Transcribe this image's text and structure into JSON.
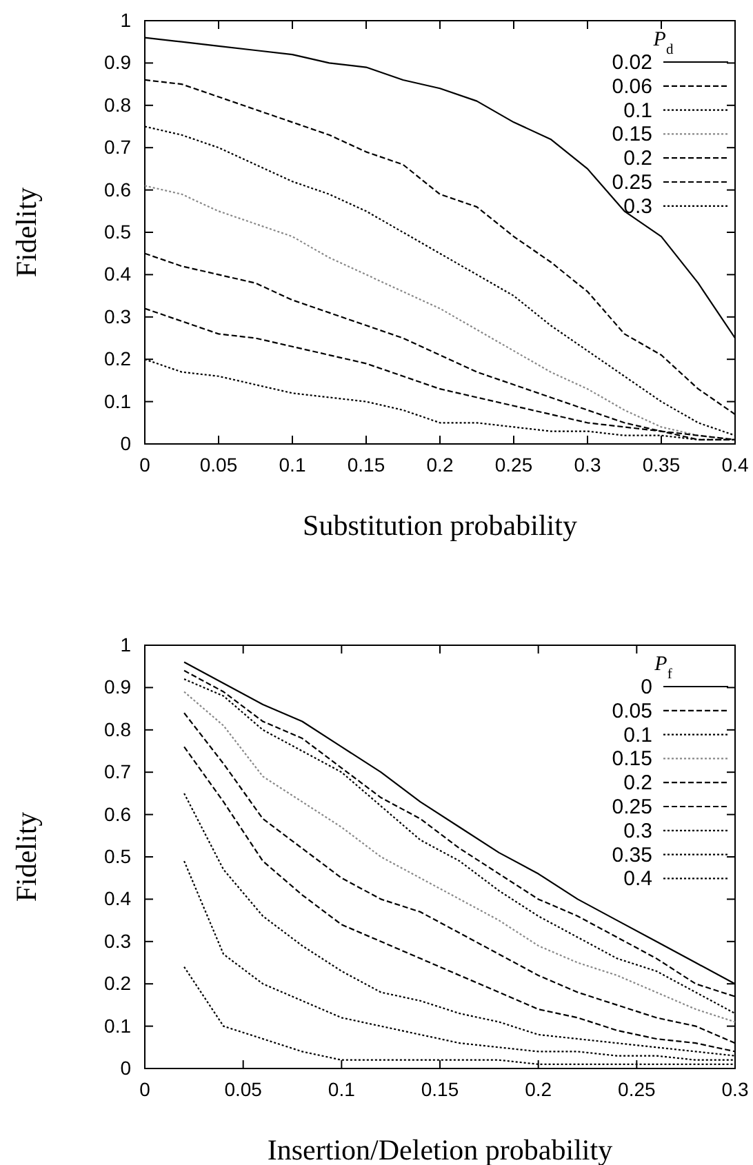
{
  "chart_data": [
    {
      "type": "line",
      "xlabel": "Substitution probability",
      "ylabel": "Fidelity",
      "legend_title": "P$_{d}$",
      "legend": "top right",
      "grid": false,
      "xlim": [
        0,
        0.4
      ],
      "ylim": [
        0,
        1
      ],
      "xticks": [
        0,
        0.05,
        0.1,
        0.15,
        0.2,
        0.25,
        0.3,
        0.35,
        0.4
      ],
      "yticks": [
        0,
        0.1,
        0.2,
        0.3,
        0.4,
        0.5,
        0.6,
        0.7,
        0.8,
        0.9,
        1
      ],
      "x": [
        0,
        0.025,
        0.05,
        0.075,
        0.1,
        0.125,
        0.15,
        0.175,
        0.2,
        0.225,
        0.25,
        0.275,
        0.3,
        0.325,
        0.35,
        0.375,
        0.4
      ],
      "series": [
        {
          "name": "0.02",
          "color": "#000000",
          "line_style": "solid",
          "values": [
            0.96,
            0.95,
            0.94,
            0.93,
            0.92,
            0.9,
            0.89,
            0.86,
            0.84,
            0.81,
            0.76,
            0.72,
            0.65,
            0.55,
            0.49,
            0.38,
            0.25
          ]
        },
        {
          "name": "0.06",
          "color": "#000000",
          "line_style": "dashed",
          "values": [
            0.86,
            0.85,
            0.82,
            0.79,
            0.76,
            0.73,
            0.69,
            0.66,
            0.59,
            0.56,
            0.49,
            0.43,
            0.36,
            0.26,
            0.21,
            0.13,
            0.07
          ]
        },
        {
          "name": "0.1",
          "color": "#000000",
          "line_style": "dotted",
          "values": [
            0.75,
            0.73,
            0.7,
            0.66,
            0.62,
            0.59,
            0.55,
            0.5,
            0.45,
            0.4,
            0.35,
            0.28,
            0.22,
            0.16,
            0.1,
            0.05,
            0.02
          ]
        },
        {
          "name": "0.15",
          "color": "#888888",
          "line_style": "dotted",
          "values": [
            0.61,
            0.59,
            0.55,
            0.52,
            0.49,
            0.44,
            0.4,
            0.36,
            0.32,
            0.27,
            0.22,
            0.17,
            0.13,
            0.08,
            0.04,
            0.02,
            0.01
          ]
        },
        {
          "name": "0.2",
          "color": "#000000",
          "line_style": "dashed",
          "values": [
            0.45,
            0.42,
            0.4,
            0.38,
            0.34,
            0.31,
            0.28,
            0.25,
            0.21,
            0.17,
            0.14,
            0.11,
            0.08,
            0.05,
            0.03,
            0.02,
            0.01
          ]
        },
        {
          "name": "0.25",
          "color": "#000000",
          "line_style": "dashed",
          "values": [
            0.32,
            0.29,
            0.26,
            0.25,
            0.23,
            0.21,
            0.19,
            0.16,
            0.13,
            0.11,
            0.09,
            0.07,
            0.05,
            0.04,
            0.03,
            0.01,
            0.01
          ]
        },
        {
          "name": "0.3",
          "color": "#000000",
          "line_style": "dotted",
          "values": [
            0.2,
            0.17,
            0.16,
            0.14,
            0.12,
            0.11,
            0.1,
            0.08,
            0.05,
            0.05,
            0.04,
            0.03,
            0.03,
            0.02,
            0.02,
            0.01,
            0.01
          ]
        }
      ]
    },
    {
      "type": "line",
      "xlabel": "Insertion/Deletion probability",
      "ylabel": "Fidelity",
      "legend_title": "P$_{f}$",
      "legend": "top right",
      "grid": false,
      "xlim": [
        0,
        0.3
      ],
      "ylim": [
        0,
        1
      ],
      "xticks": [
        0,
        0.05,
        0.1,
        0.15,
        0.2,
        0.25,
        0.3
      ],
      "yticks": [
        0,
        0.1,
        0.2,
        0.3,
        0.4,
        0.5,
        0.6,
        0.7,
        0.8,
        0.9,
        1
      ],
      "x": [
        0.02,
        0.04,
        0.06,
        0.08,
        0.1,
        0.12,
        0.14,
        0.16,
        0.18,
        0.2,
        0.22,
        0.24,
        0.26,
        0.28,
        0.3
      ],
      "series": [
        {
          "name": "0",
          "color": "#000000",
          "line_style": "solid",
          "values": [
            0.96,
            0.91,
            0.86,
            0.82,
            0.76,
            0.7,
            0.63,
            0.57,
            0.51,
            0.46,
            0.4,
            0.35,
            0.3,
            0.25,
            0.2
          ]
        },
        {
          "name": "0.05",
          "color": "#000000",
          "line_style": "dashed",
          "values": [
            0.94,
            0.89,
            0.82,
            0.78,
            0.71,
            0.64,
            0.59,
            0.52,
            0.46,
            0.4,
            0.36,
            0.31,
            0.26,
            0.2,
            0.17
          ]
        },
        {
          "name": "0.1",
          "color": "#000000",
          "line_style": "dotted",
          "values": [
            0.92,
            0.88,
            0.8,
            0.75,
            0.7,
            0.62,
            0.54,
            0.49,
            0.42,
            0.36,
            0.31,
            0.26,
            0.23,
            0.18,
            0.13
          ]
        },
        {
          "name": "0.15",
          "color": "#888888",
          "line_style": "dotted",
          "values": [
            0.89,
            0.81,
            0.69,
            0.63,
            0.57,
            0.5,
            0.45,
            0.4,
            0.35,
            0.29,
            0.25,
            0.22,
            0.18,
            0.14,
            0.11
          ]
        },
        {
          "name": "0.2",
          "color": "#000000",
          "line_style": "dashed",
          "values": [
            0.84,
            0.72,
            0.59,
            0.52,
            0.45,
            0.4,
            0.37,
            0.32,
            0.27,
            0.22,
            0.18,
            0.15,
            0.12,
            0.1,
            0.06
          ]
        },
        {
          "name": "0.25",
          "color": "#000000",
          "line_style": "dashed",
          "values": [
            0.76,
            0.63,
            0.49,
            0.41,
            0.34,
            0.3,
            0.26,
            0.22,
            0.18,
            0.14,
            0.12,
            0.09,
            0.07,
            0.06,
            0.04
          ]
        },
        {
          "name": "0.3",
          "color": "#000000",
          "line_style": "dotted",
          "values": [
            0.65,
            0.47,
            0.36,
            0.29,
            0.23,
            0.18,
            0.16,
            0.13,
            0.11,
            0.08,
            0.07,
            0.06,
            0.05,
            0.04,
            0.03
          ]
        },
        {
          "name": "0.35",
          "color": "#000000",
          "line_style": "dotted",
          "values": [
            0.49,
            0.27,
            0.2,
            0.16,
            0.12,
            0.1,
            0.08,
            0.06,
            0.05,
            0.04,
            0.04,
            0.03,
            0.03,
            0.02,
            0.02
          ]
        },
        {
          "name": "0.4",
          "color": "#000000",
          "line_style": "dotted",
          "values": [
            0.24,
            0.1,
            0.07,
            0.04,
            0.02,
            0.02,
            0.02,
            0.02,
            0.02,
            0.01,
            0.01,
            0.01,
            0.01,
            0.01,
            0.01
          ]
        }
      ]
    }
  ]
}
